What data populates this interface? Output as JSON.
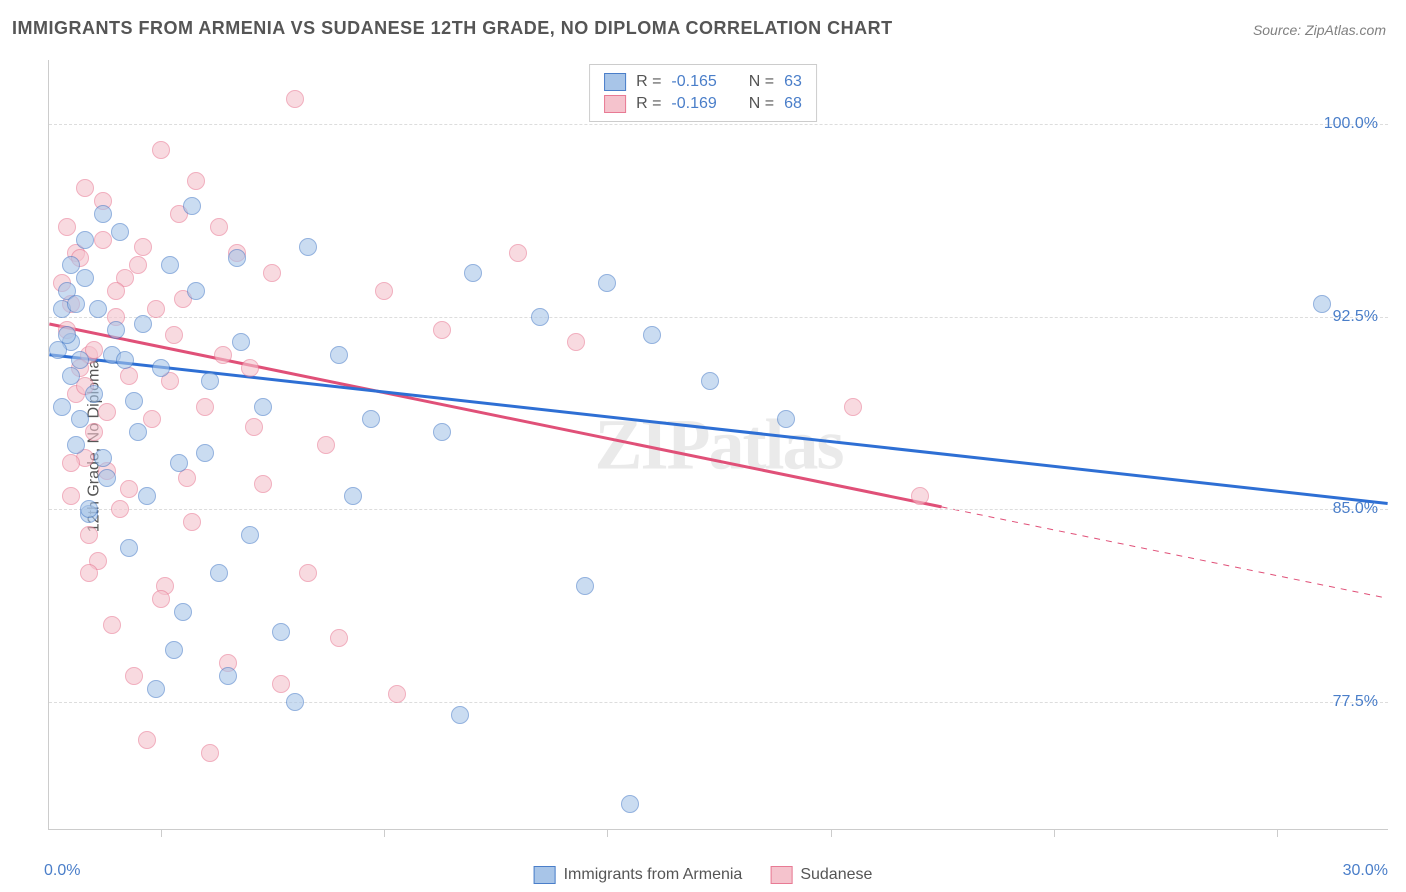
{
  "title": "IMMIGRANTS FROM ARMENIA VS SUDANESE 12TH GRADE, NO DIPLOMA CORRELATION CHART",
  "source_label": "Source: ",
  "source_value": "ZipAtlas.com",
  "ylabel": "12th Grade, No Diploma",
  "watermark": "ZIPatlas",
  "chart": {
    "type": "scatter",
    "xlim": [
      0,
      30
    ],
    "ylim": [
      72.5,
      102.5
    ],
    "x_label_min": "0.0%",
    "x_label_max": "30.0%",
    "yticks": [
      77.5,
      85.0,
      92.5,
      100.0
    ],
    "ytick_labels": [
      "77.5%",
      "85.0%",
      "92.5%",
      "100.0%"
    ],
    "xticks": [
      2.5,
      7.5,
      12.5,
      17.5,
      22.5,
      27.5
    ],
    "background_color": "#ffffff",
    "grid_color": "#dddddd",
    "axis_color": "#cccccc",
    "tick_label_color": "#4a7ec9",
    "point_radius": 9,
    "point_opacity": 0.6,
    "series": {
      "armenia": {
        "label": "Immigrants from Armenia",
        "fill_color": "#a8c5e8",
        "stroke_color": "#4a7ec9",
        "trend_color": "#2e6fd4",
        "trend_width": 3,
        "R": "-0.165",
        "N": "63",
        "trend_start": {
          "x": 0,
          "y": 91.0
        },
        "trend_end": {
          "x": 30,
          "y": 85.2
        },
        "trend_dash_from_x": 30,
        "points": [
          {
            "x": 1.2,
            "y": 96.5
          },
          {
            "x": 0.5,
            "y": 91.5
          },
          {
            "x": 2.0,
            "y": 88.0
          },
          {
            "x": 3.2,
            "y": 96.8
          },
          {
            "x": 0.8,
            "y": 94.0
          },
          {
            "x": 1.5,
            "y": 92.0
          },
          {
            "x": 4.2,
            "y": 94.8
          },
          {
            "x": 0.3,
            "y": 92.8
          },
          {
            "x": 2.5,
            "y": 90.5
          },
          {
            "x": 5.8,
            "y": 95.2
          },
          {
            "x": 3.5,
            "y": 87.2
          },
          {
            "x": 1.0,
            "y": 89.5
          },
          {
            "x": 6.5,
            "y": 91.0
          },
          {
            "x": 0.7,
            "y": 90.8
          },
          {
            "x": 4.8,
            "y": 89.0
          },
          {
            "x": 2.2,
            "y": 85.5
          },
          {
            "x": 9.5,
            "y": 94.2
          },
          {
            "x": 0.4,
            "y": 93.5
          },
          {
            "x": 7.2,
            "y": 88.5
          },
          {
            "x": 1.8,
            "y": 83.5
          },
          {
            "x": 12.5,
            "y": 93.8
          },
          {
            "x": 3.0,
            "y": 81.0
          },
          {
            "x": 0.6,
            "y": 87.5
          },
          {
            "x": 8.8,
            "y": 88.0
          },
          {
            "x": 2.8,
            "y": 79.5
          },
          {
            "x": 11.0,
            "y": 92.5
          },
          {
            "x": 4.0,
            "y": 78.5
          },
          {
            "x": 13.5,
            "y": 91.8
          },
          {
            "x": 5.2,
            "y": 80.2
          },
          {
            "x": 0.9,
            "y": 84.8
          },
          {
            "x": 14.8,
            "y": 90.0
          },
          {
            "x": 1.3,
            "y": 86.2
          },
          {
            "x": 12.0,
            "y": 82.0
          },
          {
            "x": 3.8,
            "y": 82.5
          },
          {
            "x": 0.2,
            "y": 91.2
          },
          {
            "x": 16.5,
            "y": 88.5
          },
          {
            "x": 2.4,
            "y": 78.0
          },
          {
            "x": 9.2,
            "y": 77.0
          },
          {
            "x": 28.5,
            "y": 93.0
          },
          {
            "x": 5.5,
            "y": 77.5
          },
          {
            "x": 13.0,
            "y": 73.5
          },
          {
            "x": 0.5,
            "y": 90.2
          },
          {
            "x": 4.5,
            "y": 84.0
          },
          {
            "x": 1.6,
            "y": 95.8
          },
          {
            "x": 6.8,
            "y": 85.5
          },
          {
            "x": 0.3,
            "y": 89.0
          },
          {
            "x": 3.3,
            "y": 93.5
          },
          {
            "x": 1.1,
            "y": 92.8
          },
          {
            "x": 2.7,
            "y": 94.5
          },
          {
            "x": 0.8,
            "y": 95.5
          },
          {
            "x": 1.4,
            "y": 91.0
          },
          {
            "x": 0.6,
            "y": 93.0
          },
          {
            "x": 2.1,
            "y": 92.2
          },
          {
            "x": 0.4,
            "y": 91.8
          },
          {
            "x": 3.6,
            "y": 90.0
          },
          {
            "x": 1.9,
            "y": 89.2
          },
          {
            "x": 0.7,
            "y": 88.5
          },
          {
            "x": 2.9,
            "y": 86.8
          },
          {
            "x": 1.2,
            "y": 87.0
          },
          {
            "x": 0.9,
            "y": 85.0
          },
          {
            "x": 4.3,
            "y": 91.5
          },
          {
            "x": 1.7,
            "y": 90.8
          },
          {
            "x": 0.5,
            "y": 94.5
          }
        ]
      },
      "sudanese": {
        "label": "Sudanese",
        "fill_color": "#f5c3cd",
        "stroke_color": "#e87a94",
        "trend_color": "#e05078",
        "trend_width": 3,
        "R": "-0.169",
        "N": "68",
        "trend_start": {
          "x": 0,
          "y": 92.2
        },
        "trend_end": {
          "x": 30,
          "y": 81.5
        },
        "trend_dash_from_x": 20,
        "points": [
          {
            "x": 0.8,
            "y": 97.5
          },
          {
            "x": 2.5,
            "y": 99.0
          },
          {
            "x": 5.5,
            "y": 101.0
          },
          {
            "x": 1.2,
            "y": 95.5
          },
          {
            "x": 3.8,
            "y": 96.0
          },
          {
            "x": 0.5,
            "y": 93.0
          },
          {
            "x": 2.0,
            "y": 94.5
          },
          {
            "x": 1.5,
            "y": 92.5
          },
          {
            "x": 4.2,
            "y": 95.0
          },
          {
            "x": 0.9,
            "y": 91.0
          },
          {
            "x": 3.0,
            "y": 93.2
          },
          {
            "x": 1.8,
            "y": 90.2
          },
          {
            "x": 5.0,
            "y": 94.2
          },
          {
            "x": 0.6,
            "y": 89.5
          },
          {
            "x": 2.8,
            "y": 91.8
          },
          {
            "x": 7.5,
            "y": 93.5
          },
          {
            "x": 1.0,
            "y": 88.0
          },
          {
            "x": 4.5,
            "y": 90.5
          },
          {
            "x": 0.4,
            "y": 92.0
          },
          {
            "x": 3.5,
            "y": 89.0
          },
          {
            "x": 10.5,
            "y": 95.0
          },
          {
            "x": 1.3,
            "y": 86.5
          },
          {
            "x": 6.2,
            "y": 87.5
          },
          {
            "x": 0.7,
            "y": 90.5
          },
          {
            "x": 2.3,
            "y": 88.5
          },
          {
            "x": 8.8,
            "y": 92.0
          },
          {
            "x": 1.6,
            "y": 85.0
          },
          {
            "x": 4.8,
            "y": 86.0
          },
          {
            "x": 0.3,
            "y": 93.8
          },
          {
            "x": 3.2,
            "y": 84.5
          },
          {
            "x": 11.8,
            "y": 91.5
          },
          {
            "x": 1.1,
            "y": 83.0
          },
          {
            "x": 5.8,
            "y": 82.5
          },
          {
            "x": 0.8,
            "y": 87.0
          },
          {
            "x": 2.6,
            "y": 82.0
          },
          {
            "x": 18.0,
            "y": 89.0
          },
          {
            "x": 1.4,
            "y": 80.5
          },
          {
            "x": 6.5,
            "y": 80.0
          },
          {
            "x": 0.5,
            "y": 85.5
          },
          {
            "x": 4.0,
            "y": 79.0
          },
          {
            "x": 19.5,
            "y": 85.5
          },
          {
            "x": 1.9,
            "y": 78.5
          },
          {
            "x": 7.8,
            "y": 77.8
          },
          {
            "x": 0.9,
            "y": 84.0
          },
          {
            "x": 5.2,
            "y": 78.2
          },
          {
            "x": 2.2,
            "y": 76.0
          },
          {
            "x": 3.6,
            "y": 75.5
          },
          {
            "x": 1.7,
            "y": 94.0
          },
          {
            "x": 0.6,
            "y": 95.0
          },
          {
            "x": 2.9,
            "y": 96.5
          },
          {
            "x": 1.2,
            "y": 97.0
          },
          {
            "x": 3.3,
            "y": 97.8
          },
          {
            "x": 0.4,
            "y": 96.0
          },
          {
            "x": 2.1,
            "y": 95.2
          },
          {
            "x": 1.5,
            "y": 93.5
          },
          {
            "x": 0.7,
            "y": 94.8
          },
          {
            "x": 2.4,
            "y": 92.8
          },
          {
            "x": 1.0,
            "y": 91.2
          },
          {
            "x": 3.9,
            "y": 91.0
          },
          {
            "x": 0.8,
            "y": 89.8
          },
          {
            "x": 2.7,
            "y": 90.0
          },
          {
            "x": 1.3,
            "y": 88.8
          },
          {
            "x": 4.6,
            "y": 88.2
          },
          {
            "x": 0.5,
            "y": 86.8
          },
          {
            "x": 3.1,
            "y": 86.2
          },
          {
            "x": 1.8,
            "y": 85.8
          },
          {
            "x": 0.9,
            "y": 82.5
          },
          {
            "x": 2.5,
            "y": 81.5
          }
        ]
      }
    }
  },
  "legend_labels": {
    "R_prefix": "R = ",
    "N_prefix": "N = "
  }
}
